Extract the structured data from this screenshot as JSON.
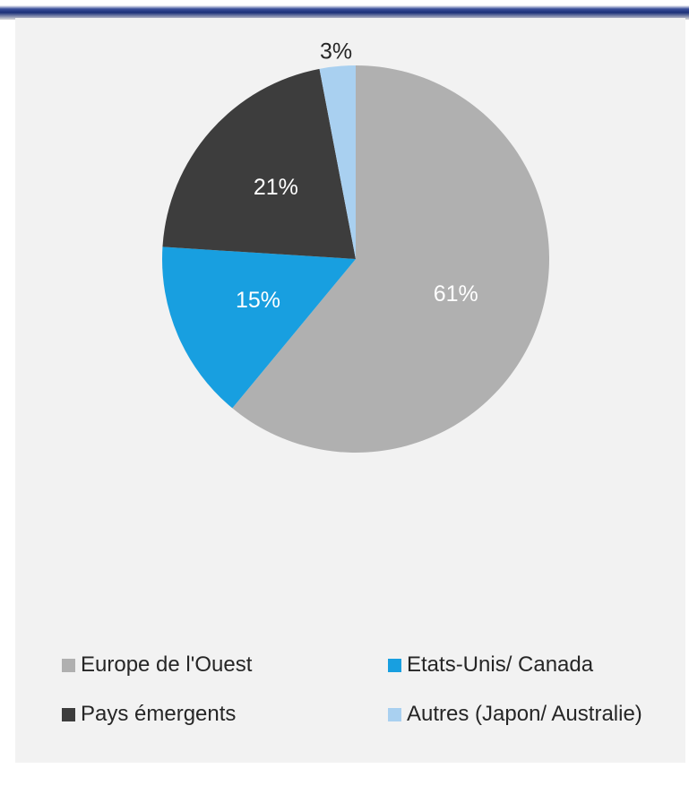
{
  "chart_data": {
    "type": "pie",
    "title": "",
    "slices": [
      {
        "label": "Europe de l'Ouest",
        "value": 61,
        "value_label": "61%",
        "color": "#b0b0b0"
      },
      {
        "label": "Etats-Unis/ Canada",
        "value": 15,
        "value_label": "15%",
        "color": "#189fe0"
      },
      {
        "label": "Pays émergents",
        "value": 21,
        "value_label": "21%",
        "color": "#3d3d3d"
      },
      {
        "label": "Autres (Japon/ Australie)",
        "value": 3,
        "value_label": "3%",
        "color": "#a9d0f0"
      }
    ],
    "start_angle_deg": 0,
    "direction": "clockwise",
    "legend_position": "bottom"
  },
  "colors": {
    "panel_background": "#f2f2f2",
    "header_bar": "#1b2f78",
    "slice_text_light": "#ffffff",
    "slice_text_dark": "#262626"
  }
}
